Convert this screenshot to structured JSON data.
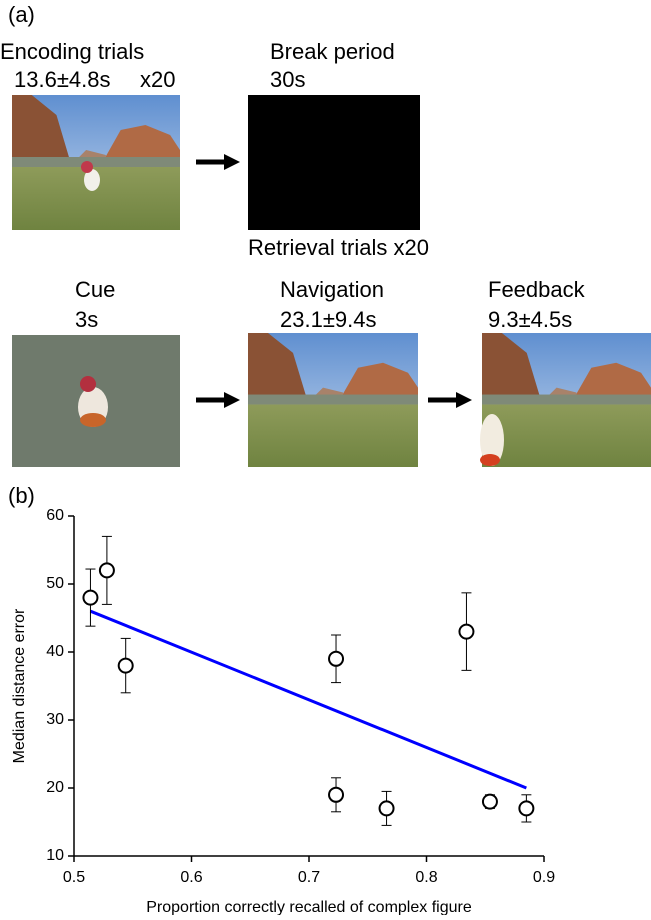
{
  "panel_a": {
    "label": "(a)",
    "encoding": {
      "title": "Encoding trials",
      "duration": "13.6±4.8s",
      "repeats": "x20"
    },
    "break": {
      "title": "Break period",
      "duration": "30s"
    },
    "retrieval": {
      "title": "Retrieval trials x20"
    },
    "cue": {
      "title": "Cue",
      "duration": "3s"
    },
    "navigation": {
      "title": "Navigation",
      "duration": "23.1±9.4s"
    },
    "feedback": {
      "title": "Feedback",
      "duration": "9.3±4.5s"
    }
  },
  "panel_b": {
    "label": "(b)"
  },
  "chart_data": {
    "type": "scatter",
    "x_label": "Proportion correctly recalled of complex figure",
    "y_label": "Median distance error",
    "x": [
      0.514,
      0.528,
      0.544,
      0.723,
      0.723,
      0.766,
      0.834,
      0.854,
      0.885
    ],
    "values": [
      48,
      52,
      38,
      39,
      19,
      17,
      43,
      18,
      17
    ],
    "errors": [
      4.2,
      5,
      4,
      3.5,
      2.5,
      2.5,
      5.7,
      1,
      2
    ],
    "color": "#000000",
    "fit_line": {
      "x": [
        0.514,
        0.885
      ],
      "y": [
        46,
        20
      ],
      "color": "#0000ff"
    },
    "xlim": [
      0.5,
      0.9
    ],
    "xticks": [
      0.5,
      0.6,
      0.7,
      0.8,
      0.9
    ],
    "ylim": [
      10,
      60
    ],
    "yticks": [
      10,
      20,
      30,
      40,
      50,
      60
    ]
  }
}
